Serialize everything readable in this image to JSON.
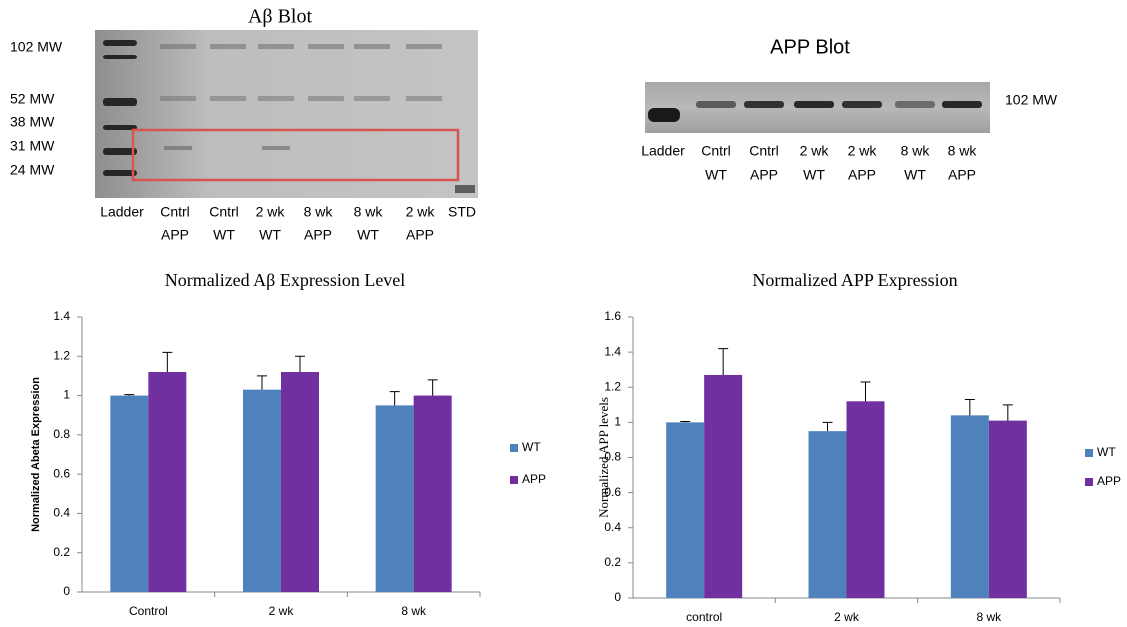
{
  "ab_blot": {
    "title": "Aβ Blot",
    "mw_labels": [
      "102 MW",
      "52 MW",
      "38 MW",
      "31 MW",
      "24 MW"
    ],
    "lanes": [
      [
        "Ladder"
      ],
      [
        "Cntrl",
        "APP"
      ],
      [
        "Cntrl",
        "WT"
      ],
      [
        "2 wk",
        "WT"
      ],
      [
        "8 wk",
        "APP"
      ],
      [
        "8 wk",
        "WT"
      ],
      [
        "2 wk",
        "APP"
      ],
      [
        "STD"
      ]
    ]
  },
  "app_blot": {
    "title": "APP Blot",
    "mw_labels": [
      "102 MW"
    ],
    "lanes": [
      [
        "Ladder"
      ],
      [
        "Cntrl",
        "WT"
      ],
      [
        "Cntrl",
        "APP"
      ],
      [
        "2 wk",
        "WT"
      ],
      [
        "2 wk",
        "APP"
      ],
      [
        "8 wk",
        "WT"
      ],
      [
        "8 wk",
        "APP"
      ]
    ]
  },
  "chart_data": [
    {
      "type": "bar",
      "title": "Normalized Aβ Expression Level",
      "ylabel": "Normalized Abeta Expression",
      "categories": [
        "Control",
        "2 wk",
        "8 wk"
      ],
      "series": [
        {
          "name": "WT",
          "color": "#4f81bd",
          "values": [
            1.0,
            1.03,
            0.95
          ],
          "error": [
            0.005,
            0.07,
            0.07
          ]
        },
        {
          "name": "APP",
          "color": "#7030a0",
          "values": [
            1.12,
            1.12,
            1.0
          ],
          "error": [
            0.1,
            0.08,
            0.08
          ]
        }
      ],
      "ylim": [
        0,
        1.4
      ],
      "yticks": [
        0,
        0.2,
        0.4,
        0.6,
        0.8,
        1,
        1.2,
        1.4
      ],
      "grid": false,
      "legend": "right"
    },
    {
      "type": "bar",
      "title": "Normalized APP Expression",
      "ylabel": "Normalized APP levels",
      "categories": [
        "control",
        "2 wk",
        "8 wk"
      ],
      "series": [
        {
          "name": "WT",
          "color": "#4f81bd",
          "values": [
            1.0,
            0.95,
            1.04
          ],
          "error": [
            0.005,
            0.05,
            0.09
          ]
        },
        {
          "name": "APP",
          "color": "#7030a0",
          "values": [
            1.27,
            1.12,
            1.01
          ],
          "error": [
            0.15,
            0.11,
            0.09
          ]
        }
      ],
      "ylim": [
        0,
        1.6
      ],
      "yticks": [
        0,
        0.2,
        0.4,
        0.6,
        0.8,
        1,
        1.2,
        1.4,
        1.6
      ],
      "grid": false,
      "legend": "right"
    }
  ]
}
